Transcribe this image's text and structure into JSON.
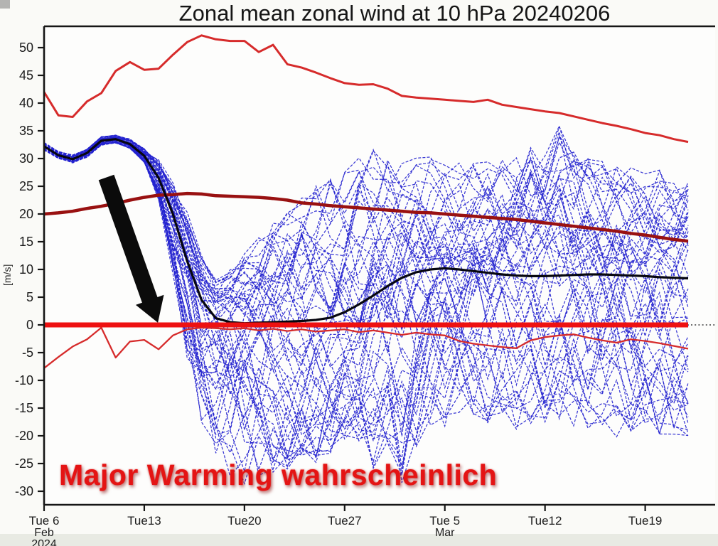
{
  "page": {
    "background": "#fafaf7",
    "bottom_band_color": "#e4e6df"
  },
  "annotations": {
    "warning_text": "Major Warming wahrscheinlich",
    "warning_color": "#e41414",
    "arrow": {
      "from": {
        "day": 4.35,
        "value": 26.6
      },
      "to": {
        "day": 7.95,
        "value": 0.4
      },
      "shaft_width": 23,
      "head_length": 34,
      "head_width": 42,
      "color": "#0b0b0b"
    }
  },
  "chart_data": {
    "type": "line",
    "title": "Zonal mean zonal wind at 10 hPa 20240206",
    "xlabel": "",
    "ylabel": "[m/s]",
    "ylim": [
      -32.4,
      53.8
    ],
    "y_tick_values": [
      50,
      45,
      40,
      35,
      30,
      25,
      20,
      15,
      10,
      5,
      0,
      -5,
      -10,
      -15,
      -20,
      -25,
      -30
    ],
    "x_ticks": [
      {
        "label": "Tue 6",
        "sublabels": [
          "Feb",
          "2024"
        ],
        "day": 0
      },
      {
        "label": "Tue13",
        "sublabels": [],
        "day": 7
      },
      {
        "label": "Tue20",
        "sublabels": [],
        "day": 14
      },
      {
        "label": "Tue27",
        "sublabels": [],
        "day": 21
      },
      {
        "label": "Tue 5",
        "sublabels": [
          "Mar"
        ],
        "day": 28
      },
      {
        "label": "Tue12",
        "sublabels": [],
        "day": 35
      },
      {
        "label": "Tue19",
        "sublabels": [],
        "day": 42
      }
    ],
    "grid": "off",
    "legend": "none",
    "days_total": 45,
    "zero_line": {
      "value": 0,
      "color": "#ee1111",
      "width": 7,
      "solid_until_day": 45,
      "dotted_color": "#3c3c3c"
    },
    "series": [
      {
        "id": "climate_max",
        "name": "climatological max",
        "color": "#d62b2b",
        "width": 3,
        "values": [
          42,
          37.8,
          37.5,
          40.3,
          41.8,
          45.8,
          47.4,
          46.0,
          46.2,
          48.7,
          51.0,
          52.2,
          51.5,
          51.2,
          51.2,
          49.2,
          50.5,
          47.0,
          46.4,
          45.5,
          44.5,
          43.6,
          43.3,
          43.4,
          42.6,
          41.3,
          41.0,
          40.8,
          40.6,
          40.4,
          40.2,
          40.6,
          39.7,
          39.3,
          38.9,
          38.5,
          38.2,
          37.6,
          37.0,
          36.4,
          35.9,
          35.3,
          34.6,
          34.2,
          33.5,
          33.0
        ]
      },
      {
        "id": "climate_mean",
        "name": "climatological mean",
        "color": "#991111",
        "width": 4.5,
        "values": [
          20.0,
          20.2,
          20.5,
          21.0,
          21.4,
          21.9,
          22.5,
          23.0,
          23.4,
          23.5,
          23.7,
          23.6,
          23.3,
          23.2,
          23.1,
          23.0,
          22.8,
          22.5,
          22.0,
          21.8,
          21.5,
          21.3,
          21.1,
          20.9,
          20.7,
          20.5,
          20.3,
          20.2,
          20.0,
          19.8,
          19.6,
          19.4,
          19.2,
          19.0,
          18.7,
          18.4,
          18.1,
          17.8,
          17.5,
          17.2,
          16.9,
          16.5,
          16.2,
          15.8,
          15.4,
          15.1
        ]
      },
      {
        "id": "climate_min",
        "name": "climatological min",
        "color": "#d62b2b",
        "width": 2.3,
        "values": [
          -7.8,
          -5.8,
          -3.9,
          -2.6,
          -0.5,
          -5.9,
          -3.0,
          -2.7,
          -4.4,
          -1.9,
          -0.8,
          -0.5,
          -0.6,
          -0.8,
          -0.6,
          -1.0,
          -0.7,
          -1.1,
          -0.8,
          -1.2,
          -1.0,
          -0.8,
          -1.3,
          -1.0,
          -1.4,
          -1.8,
          -1.4,
          -1.7,
          -1.9,
          -2.9,
          -3.4,
          -3.7,
          -4.0,
          -4.2,
          -2.8,
          -2.2,
          -1.9,
          -1.7,
          -2.3,
          -2.8,
          -3.2,
          -2.6,
          -2.9,
          -3.3,
          -3.8,
          -4.3
        ]
      },
      {
        "id": "ensemble_mean",
        "name": "ensemble mean",
        "color": "#07070f",
        "width": 3.2,
        "values": [
          32.2,
          30.6,
          29.9,
          31.0,
          33.2,
          33.5,
          32.6,
          30.5,
          26.5,
          20.0,
          11.5,
          4.5,
          1.2,
          0.5,
          0.3,
          0.4,
          0.5,
          0.6,
          0.7,
          0.9,
          1.3,
          2.3,
          3.7,
          5.3,
          7.0,
          8.5,
          9.5,
          10.0,
          10.2,
          10.0,
          9.7,
          9.4,
          9.1,
          8.9,
          8.8,
          8.8,
          8.9,
          9.0,
          9.1,
          9.1,
          9.0,
          8.9,
          8.8,
          8.6,
          8.5,
          8.4
        ]
      }
    ],
    "ensemble": {
      "count": 51,
      "color": "#2322cf",
      "width": 1.25,
      "dash": "4 2.2",
      "opacity": 0.9,
      "envelope_lower": [
        31.5,
        30.0,
        29.2,
        30.2,
        32.4,
        32.8,
        31.8,
        29.3,
        22.5,
        9.0,
        -6.0,
        -18.0,
        -26.0,
        -28.0,
        -30.0,
        -28.5,
        -28.0,
        -26.0,
        -24.0,
        -25.0,
        -23.5,
        -21.0,
        -25.0,
        -26.0,
        -23.0,
        -28.5,
        -23.0,
        -20.0,
        -18.5,
        -18.0,
        -19.0,
        -20.0,
        -19.5,
        -19.0,
        -18.5,
        -18.0,
        -18.5,
        -19.0,
        -19.5,
        -20.0,
        -20.5,
        -20.0,
        -20.0,
        -20.5,
        -20.0,
        -20.5
      ],
      "envelope_upper": [
        32.9,
        31.3,
        30.7,
        31.8,
        34.0,
        34.3,
        33.6,
        31.8,
        30.0,
        26.0,
        20.5,
        13.0,
        8.5,
        10.0,
        14.0,
        16.5,
        18.5,
        21.0,
        23.5,
        25.5,
        27.5,
        30.0,
        31.5,
        32.0,
        31.0,
        30.0,
        31.0,
        32.0,
        30.5,
        31.0,
        30.0,
        29.5,
        30.0,
        31.0,
        32.0,
        33.0,
        36.5,
        32.0,
        30.0,
        29.5,
        29.0,
        28.5,
        28.5,
        28.0,
        27.0,
        26.5
      ]
    }
  }
}
